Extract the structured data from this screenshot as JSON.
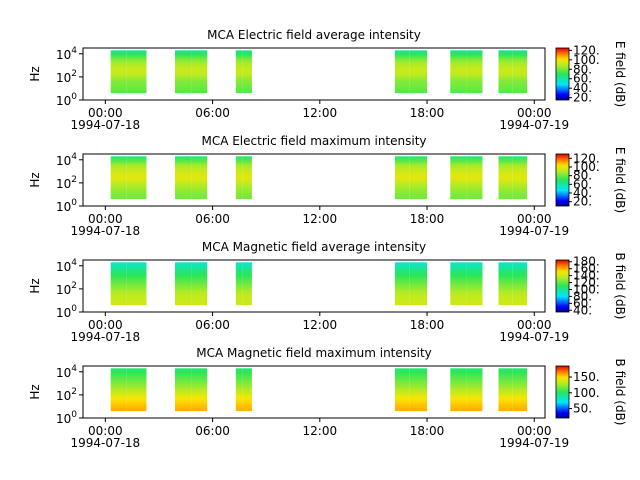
{
  "chart_data": [
    {
      "type": "heatmap",
      "title": "MCA  Electric field average intensity",
      "ylabel": "Hz",
      "colorbar_label": "E field (dB)",
      "colorbar_ticks": [
        "20.",
        "40.",
        "60.",
        "80.",
        "100.",
        "120."
      ],
      "colorbar_range": [
        15,
        125
      ],
      "y_ticks": [
        {
          "base": "10",
          "exp": "0"
        },
        {
          "base": "10",
          "exp": "2"
        },
        {
          "base": "10",
          "exp": "4"
        }
      ],
      "ylim_log10": [
        0,
        4.5
      ],
      "data_band_log10": [
        0.6,
        4.3
      ],
      "xlim_hours": [
        -1.25,
        24.6
      ],
      "x_ticks": [
        {
          "hour": 0,
          "label": "00:00",
          "date": "1994-07-18"
        },
        {
          "hour": 6,
          "label": "06:00",
          "date": ""
        },
        {
          "hour": 12,
          "label": "12:00",
          "date": ""
        },
        {
          "hour": 18,
          "label": "18:00",
          "date": ""
        },
        {
          "hour": 24,
          "label": "00:00",
          "date": "1994-07-19"
        }
      ],
      "segments_hours": [
        [
          0.3,
          1.2
        ],
        [
          1.2,
          2.3
        ],
        [
          3.9,
          4.8
        ],
        [
          4.8,
          5.7
        ],
        [
          7.3,
          7.7
        ],
        [
          7.7,
          8.2
        ],
        [
          16.2,
          17.0
        ],
        [
          17.0,
          18.0
        ],
        [
          19.3,
          20.2
        ],
        [
          20.2,
          21.1
        ],
        [
          22.0,
          22.8
        ],
        [
          22.8,
          23.6
        ]
      ],
      "freq_profile_db": [
        75,
        78,
        80,
        82,
        88,
        92,
        90,
        86,
        80,
        70,
        62
      ],
      "background_db": 60
    },
    {
      "type": "heatmap",
      "title": "MCA  Electric field maximum intensity",
      "ylabel": "Hz",
      "colorbar_label": "E field (dB)",
      "colorbar_ticks": [
        "20.",
        "40.",
        "60.",
        "80.",
        "100.",
        "120."
      ],
      "colorbar_range": [
        10,
        130
      ],
      "y_ticks": [
        {
          "base": "10",
          "exp": "0"
        },
        {
          "base": "10",
          "exp": "2"
        },
        {
          "base": "10",
          "exp": "4"
        }
      ],
      "ylim_log10": [
        0,
        4.5
      ],
      "data_band_log10": [
        0.6,
        4.3
      ],
      "xlim_hours": [
        -1.25,
        24.6
      ],
      "x_ticks": [
        {
          "hour": 0,
          "label": "00:00",
          "date": "1994-07-18"
        },
        {
          "hour": 6,
          "label": "06:00",
          "date": ""
        },
        {
          "hour": 12,
          "label": "12:00",
          "date": ""
        },
        {
          "hour": 18,
          "label": "18:00",
          "date": ""
        },
        {
          "hour": 24,
          "label": "00:00",
          "date": "1994-07-19"
        }
      ],
      "segments_hours": [
        [
          0.3,
          1.2
        ],
        [
          1.2,
          2.3
        ],
        [
          3.9,
          4.8
        ],
        [
          4.8,
          5.7
        ],
        [
          7.3,
          7.7
        ],
        [
          7.7,
          8.2
        ],
        [
          16.2,
          17.0
        ],
        [
          17.0,
          18.0
        ],
        [
          19.3,
          20.2
        ],
        [
          20.2,
          21.1
        ],
        [
          22.0,
          22.8
        ],
        [
          22.8,
          23.6
        ]
      ],
      "freq_profile_db": [
        80,
        82,
        85,
        88,
        94,
        98,
        96,
        92,
        86,
        76,
        66
      ],
      "background_db": 65
    },
    {
      "type": "heatmap",
      "title": "MCA  Magnetic field average intensity",
      "ylabel": "Hz",
      "colorbar_label": "B field (dB)",
      "colorbar_ticks": [
        "40.",
        "60.",
        "80.",
        "100.",
        "120.",
        "140.",
        "160.",
        "180."
      ],
      "colorbar_range": [
        35,
        185
      ],
      "y_ticks": [
        {
          "base": "10",
          "exp": "0"
        },
        {
          "base": "10",
          "exp": "2"
        },
        {
          "base": "10",
          "exp": "4"
        }
      ],
      "ylim_log10": [
        0,
        4.5
      ],
      "data_band_log10": [
        0.6,
        4.3
      ],
      "xlim_hours": [
        -1.25,
        24.6
      ],
      "x_ticks": [
        {
          "hour": 0,
          "label": "00:00",
          "date": "1994-07-18"
        },
        {
          "hour": 6,
          "label": "06:00",
          "date": ""
        },
        {
          "hour": 12,
          "label": "12:00",
          "date": ""
        },
        {
          "hour": 18,
          "label": "18:00",
          "date": ""
        },
        {
          "hour": 24,
          "label": "00:00",
          "date": "1994-07-19"
        }
      ],
      "segments_hours": [
        [
          0.3,
          1.2
        ],
        [
          1.2,
          2.3
        ],
        [
          3.9,
          4.8
        ],
        [
          4.8,
          5.7
        ],
        [
          7.3,
          7.7
        ],
        [
          7.7,
          8.2
        ],
        [
          16.2,
          17.0
        ],
        [
          17.0,
          18.0
        ],
        [
          19.3,
          20.2
        ],
        [
          20.2,
          21.1
        ],
        [
          22.0,
          22.8
        ],
        [
          22.8,
          23.6
        ]
      ],
      "freq_profile_db": [
        140,
        140,
        138,
        134,
        128,
        122,
        116,
        110,
        104,
        96,
        88
      ],
      "background_db": 108
    },
    {
      "type": "heatmap",
      "title": "MCA  Magnetic field maximum intensity",
      "ylabel": "Hz",
      "colorbar_label": "B field (dB)",
      "colorbar_ticks": [
        "50.",
        "100.",
        "150."
      ],
      "colorbar_range": [
        20,
        185
      ],
      "y_ticks": [
        {
          "base": "10",
          "exp": "0"
        },
        {
          "base": "10",
          "exp": "2"
        },
        {
          "base": "10",
          "exp": "4"
        }
      ],
      "ylim_log10": [
        0,
        4.5
      ],
      "data_band_log10": [
        0.6,
        4.3
      ],
      "xlim_hours": [
        -1.25,
        24.6
      ],
      "x_ticks": [
        {
          "hour": 0,
          "label": "00:00",
          "date": "1994-07-18"
        },
        {
          "hour": 6,
          "label": "06:00",
          "date": ""
        },
        {
          "hour": 12,
          "label": "12:00",
          "date": ""
        },
        {
          "hour": 18,
          "label": "18:00",
          "date": ""
        },
        {
          "hour": 24,
          "label": "00:00",
          "date": "1994-07-19"
        }
      ],
      "segments_hours": [
        [
          0.3,
          1.2
        ],
        [
          1.2,
          2.3
        ],
        [
          3.9,
          4.8
        ],
        [
          4.8,
          5.7
        ],
        [
          7.3,
          7.7
        ],
        [
          7.7,
          8.2
        ],
        [
          16.2,
          17.0
        ],
        [
          17.0,
          18.0
        ],
        [
          19.3,
          20.2
        ],
        [
          20.2,
          21.1
        ],
        [
          22.0,
          22.8
        ],
        [
          22.8,
          23.6
        ]
      ],
      "freq_profile_db": [
        158,
        156,
        152,
        146,
        138,
        130,
        122,
        116,
        110,
        104,
        98
      ],
      "background_db": 118
    }
  ]
}
